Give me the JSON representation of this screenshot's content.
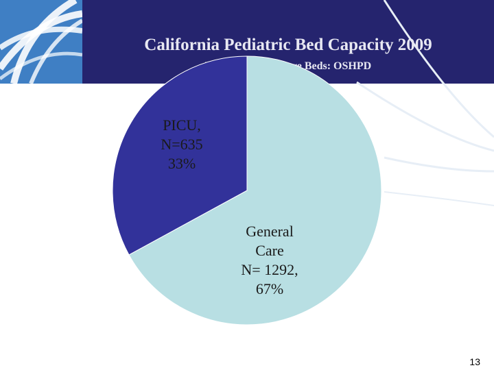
{
  "slide": {
    "title": "California Pediatric Bed Capacity 2009",
    "subtitle": "Licensed Acute Care Beds: OSHPD",
    "page_number": "13"
  },
  "colors": {
    "header_bg": "#25246e",
    "logo_bg": "#3f7fc4",
    "picu": "#32329a",
    "general_care": "#b8dfe3"
  },
  "chart_data": {
    "type": "pie",
    "title": "California Pediatric Bed Capacity 2009",
    "subtitle": "Licensed Acute Care Beds: OSHPD",
    "slices": [
      {
        "name": "General Care",
        "value": 1292,
        "percent": 67,
        "label_lines": [
          "General",
          "Care",
          "N= 1292,",
          "67%"
        ]
      },
      {
        "name": "PICU",
        "value": 635,
        "percent": 33,
        "label_lines": [
          "PICU,",
          "N=635",
          "33%"
        ]
      }
    ]
  }
}
